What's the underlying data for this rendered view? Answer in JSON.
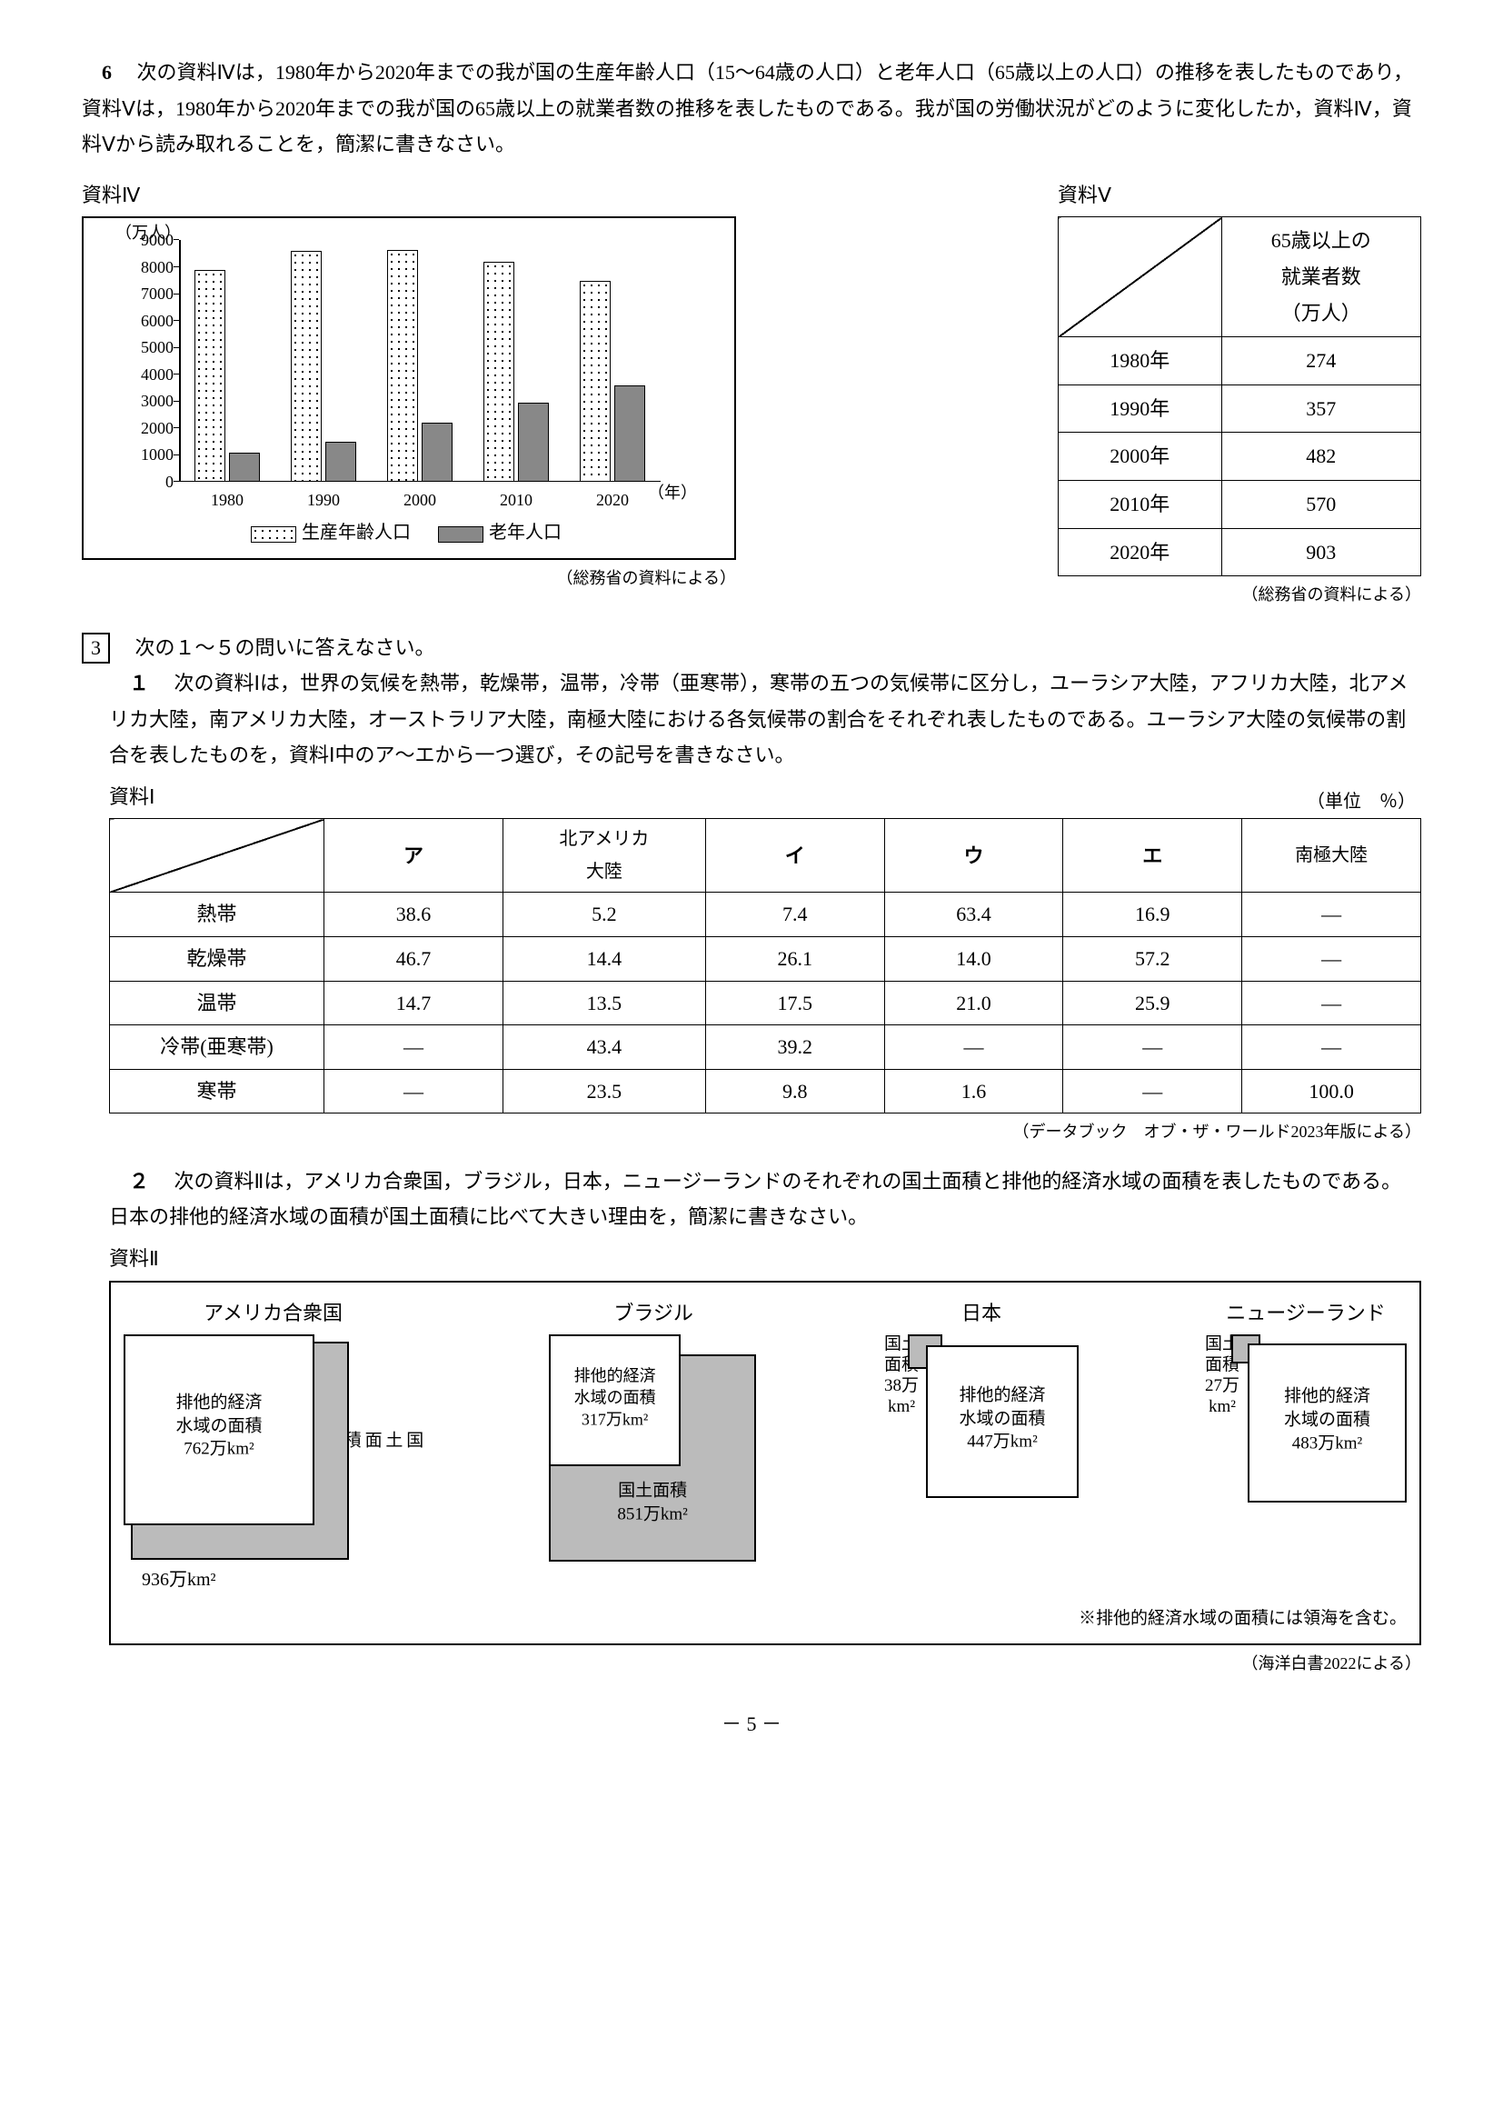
{
  "q6": {
    "num": "6",
    "text": "次の資料Ⅳは，1980年から2020年までの我が国の生産年齢人口（15～64歳の人口）と老年人口（65歳以上の人口）の推移を表したものであり，資料Ⅴは，1980年から2020年までの我が国の65歳以上の就業者数の推移を表したものである。我が国の労働状況がどのように変化したか，資料Ⅳ，資料Ⅴから読み取れることを，簡潔に書きなさい。"
  },
  "res4": {
    "title": "資料Ⅳ",
    "y_unit": "（万人）",
    "x_unit": "（年）",
    "ymax": 9000,
    "ytick_step": 1000,
    "yticks": [
      "0",
      "1000",
      "2000",
      "3000",
      "4000",
      "5000",
      "6000",
      "7000",
      "8000",
      "9000"
    ],
    "years": [
      "1980",
      "1990",
      "2000",
      "2010",
      "2020"
    ],
    "series_a_name": "生産年齢人口",
    "series_b_name": "老年人口",
    "series_a": [
      7900,
      8600,
      8650,
      8200,
      7500
    ],
    "series_b": [
      1100,
      1500,
      2200,
      2950,
      3600
    ],
    "source": "（総務省の資料による）",
    "colors": {
      "dotted_bg": "#ffffff",
      "grey": "#888888",
      "border": "#000000"
    }
  },
  "res5": {
    "title": "資料Ⅴ",
    "header": "65歳以上の\n就業者数\n（万人）",
    "rows": [
      {
        "year": "1980年",
        "val": "274"
      },
      {
        "year": "1990年",
        "val": "357"
      },
      {
        "year": "2000年",
        "val": "482"
      },
      {
        "year": "2010年",
        "val": "570"
      },
      {
        "year": "2020年",
        "val": "903"
      }
    ],
    "source": "（総務省の資料による）"
  },
  "q3": {
    "boxnum": "3",
    "lead": "次の１～５の問いに答えなさい。"
  },
  "q3_1": {
    "num": "１",
    "text": "次の資料Ⅰは，世界の気候を熱帯，乾燥帯，温帯，冷帯（亜寒帯），寒帯の五つの気候帯に区分し，ユーラシア大陸，アフリカ大陸，北アメリカ大陸，南アメリカ大陸，オーストラリア大陸，南極大陸における各気候帯の割合をそれぞれ表したものである。ユーラシア大陸の気候帯の割合を表したものを，資料Ⅰ中のア～エから一つ選び，その記号を書きなさい。"
  },
  "res1": {
    "title": "資料Ⅰ",
    "unit": "（単位　％）",
    "col_headers": [
      "",
      "ア",
      "北アメリカ\n大陸",
      "イ",
      "ウ",
      "エ",
      "南極大陸"
    ],
    "rows": [
      {
        "h": "熱帯",
        "c": [
          "38.6",
          "5.2",
          "7.4",
          "63.4",
          "16.9",
          "—"
        ]
      },
      {
        "h": "乾燥帯",
        "c": [
          "46.7",
          "14.4",
          "26.1",
          "14.0",
          "57.2",
          "—"
        ]
      },
      {
        "h": "温帯",
        "c": [
          "14.7",
          "13.5",
          "17.5",
          "21.0",
          "25.9",
          "—"
        ]
      },
      {
        "h": "冷帯(亜寒帯)",
        "c": [
          "—",
          "43.4",
          "39.2",
          "—",
          "—",
          "—"
        ]
      },
      {
        "h": "寒帯",
        "c": [
          "—",
          "23.5",
          "9.8",
          "1.6",
          "—",
          "100.0"
        ]
      }
    ],
    "source": "（データブック　オブ・ザ・ワールド2023年版による）"
  },
  "q3_2": {
    "num": "２",
    "text": "次の資料Ⅱは，アメリカ合衆国，ブラジル，日本，ニュージーランドのそれぞれの国土面積と排他的経済水域の面積を表したものである。日本の排他的経済水域の面積が国土面積に比べて大きい理由を，簡潔に書きなさい。"
  },
  "res2": {
    "title": "資料Ⅱ",
    "countries": {
      "us": {
        "name": "アメリカ合衆国",
        "eez_label": "排他的経済\n水域の面積\n762万km²",
        "land_label": "国\n土\n面\n積",
        "land_below": "936万km²"
      },
      "br": {
        "name": "ブラジル",
        "eez_label": "排他的経済\n水域の面積\n317万km²",
        "land_label": "国土面積\n851万km²"
      },
      "jp": {
        "name": "日本",
        "land_side": "国土\n面積\n38万\nkm²",
        "eez_label": "排他的経済\n水域の面積\n447万km²"
      },
      "nz": {
        "name": "ニュージーランド",
        "land_side": "国土\n面積\n27万\nkm²",
        "eez_label": "排他的経済\n水域の面積\n483万km²"
      }
    },
    "note": "※排他的経済水域の面積には領海を含む。",
    "source": "（海洋白書2022による）"
  },
  "page_no": "－ 5 －"
}
